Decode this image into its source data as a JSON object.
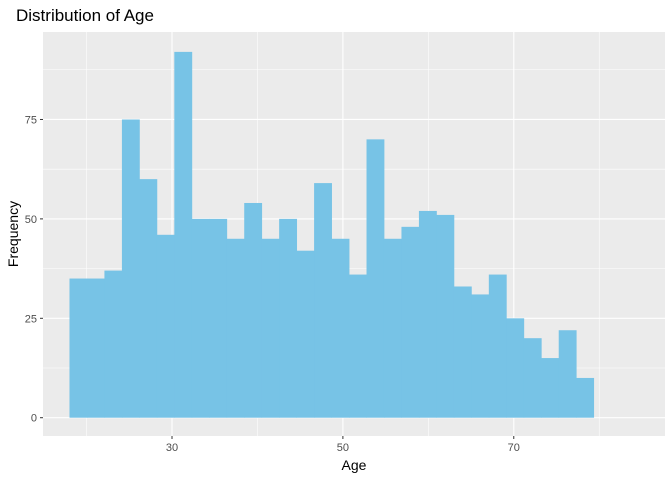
{
  "chart_data": {
    "type": "bar",
    "subtype": "histogram",
    "title": "Distribution of Age",
    "xlabel": "Age",
    "ylabel": "Frequency",
    "x_ticks": [
      30,
      50,
      70
    ],
    "y_ticks": [
      0,
      25,
      50,
      75
    ],
    "xlim": [
      14.9,
      87.7
    ],
    "ylim": [
      -4.6,
      97
    ],
    "bin_width": 2.045,
    "bin_start": 18.0,
    "values": [
      35,
      35,
      37,
      75,
      60,
      46,
      92,
      50,
      50,
      45,
      54,
      45,
      50,
      42,
      59,
      45,
      36,
      70,
      45,
      48,
      52,
      51,
      33,
      31,
      36,
      25,
      20,
      15,
      22,
      10
    ],
    "colors": {
      "bar": "#77c3e6",
      "panel": "#ebebeb",
      "grid": "#ffffff"
    },
    "grid": true
  }
}
